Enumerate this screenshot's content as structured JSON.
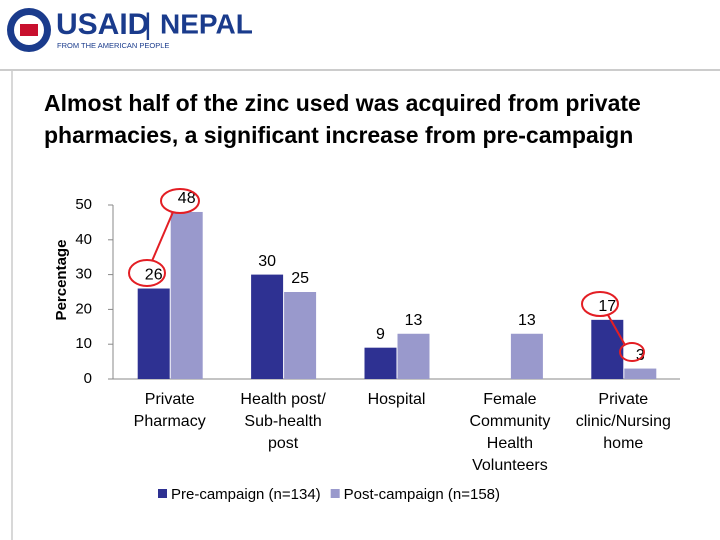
{
  "header": {
    "logo": "USAID",
    "divider": "|",
    "country": "NEPAL",
    "tagline": "FROM THE AMERICAN PEOPLE"
  },
  "chart_data": {
    "type": "bar",
    "title": "Almost half of the zinc used was acquired from private pharmacies,  a significant increase from pre-campaign",
    "y_label": "Percentage",
    "categories": [
      "Private Pharmacy",
      "Health post/ Sub-health post",
      "Hospital",
      "Female Community Health Volunteers",
      "Private clinic/Nursing home"
    ],
    "series": [
      {
        "name": "Pre-campaign (n=134)",
        "color": "#2e3192",
        "values": [
          26,
          30,
          9,
          null,
          17
        ]
      },
      {
        "name": "Post-campaign (n=158)",
        "color": "#9999cc",
        "values": [
          48,
          25,
          13,
          13,
          3
        ]
      }
    ],
    "ylim": [
      0,
      50
    ],
    "yticks": [
      0,
      10,
      20,
      30,
      40,
      50
    ],
    "grid": false,
    "legend": "bottom"
  }
}
